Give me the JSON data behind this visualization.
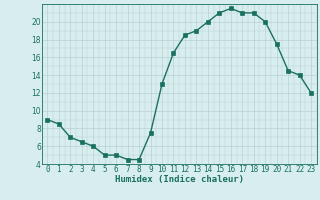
{
  "x": [
    0,
    1,
    2,
    3,
    4,
    5,
    6,
    7,
    8,
    9,
    10,
    11,
    12,
    13,
    14,
    15,
    16,
    17,
    18,
    19,
    20,
    21,
    22,
    23
  ],
  "y": [
    9,
    8.5,
    7,
    6.5,
    6,
    5,
    5,
    4.5,
    4.5,
    7.5,
    13,
    16.5,
    18.5,
    19,
    20,
    21,
    21.5,
    21,
    21,
    20,
    17.5,
    14.5,
    14,
    12
  ],
  "line_color": "#1a7060",
  "marker_color": "#1a7060",
  "bg_color": "#d8eeee",
  "grid_color": "#b8d0d0",
  "xlabel": "Humidex (Indice chaleur)",
  "ylim": [
    4,
    22
  ],
  "xlim": [
    -0.5,
    23.5
  ],
  "yticks": [
    4,
    6,
    8,
    10,
    12,
    14,
    16,
    18,
    20
  ],
  "xticks": [
    0,
    1,
    2,
    3,
    4,
    5,
    6,
    7,
    8,
    9,
    10,
    11,
    12,
    13,
    14,
    15,
    16,
    17,
    18,
    19,
    20,
    21,
    22,
    23
  ],
  "tick_color": "#1a7060",
  "label_color": "#1a7060",
  "font_size_label": 6.5,
  "font_size_tick": 5.5,
  "line_width": 1.0,
  "marker_size": 2.5
}
